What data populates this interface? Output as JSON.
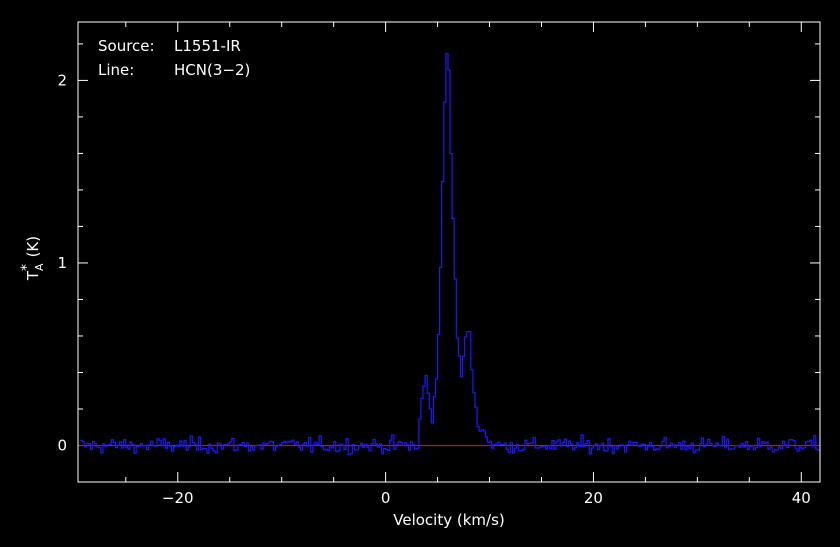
{
  "colors": {
    "background": "#000000",
    "axes": "#ffffff",
    "spectrum": "#1a1aff",
    "baseline": "#c81414"
  },
  "chart_data": {
    "type": "line",
    "style": "histogram-step",
    "annotations": {
      "source_key": "Source:",
      "source_value": "L1551-IR",
      "line_key": "Line:",
      "line_value": "HCN(3−2)"
    },
    "xlabel": "Velocity (km/s)",
    "ylabel": "T",
    "ylabel_sub": "A",
    "ylabel_sup": "*",
    "ylabel_unit": "(K)",
    "xlim": [
      -29.6,
      41.8
    ],
    "ylim": [
      -0.2,
      2.32
    ],
    "x_ticks_major": [
      -20,
      0,
      20,
      40
    ],
    "x_tick_labels": [
      "−20",
      "0",
      "20",
      "40"
    ],
    "x_ticks_minor_step": 5,
    "y_ticks_major": [
      0,
      1,
      2
    ],
    "y_tick_labels": [
      "0",
      "1",
      "2"
    ],
    "y_ticks_minor_step": 0.2,
    "baseline_y": 0,
    "grid": false,
    "series": [
      {
        "channel_width_kmps": 0.2,
        "x_start": -29.4,
        "noise_rms": 0.03,
        "features": [
          {
            "x": 3.1,
            "y": 0.01
          },
          {
            "x": 3.6,
            "y": 0.3
          },
          {
            "x": 3.9,
            "y": 0.38
          },
          {
            "x": 4.2,
            "y": 0.22
          },
          {
            "x": 4.5,
            "y": 0.15
          },
          {
            "x": 5.0,
            "y": 0.4
          },
          {
            "x": 5.4,
            "y": 1.2
          },
          {
            "x": 5.8,
            "y": 2.18
          },
          {
            "x": 6.1,
            "y": 2.05
          },
          {
            "x": 6.5,
            "y": 1.2
          },
          {
            "x": 6.9,
            "y": 0.6
          },
          {
            "x": 7.3,
            "y": 0.38
          },
          {
            "x": 7.7,
            "y": 0.58
          },
          {
            "x": 8.0,
            "y": 0.66
          },
          {
            "x": 8.4,
            "y": 0.35
          },
          {
            "x": 8.9,
            "y": 0.12
          },
          {
            "x": 9.5,
            "y": 0.07
          },
          {
            "x": 10.2,
            "y": 0.02
          }
        ]
      }
    ]
  }
}
